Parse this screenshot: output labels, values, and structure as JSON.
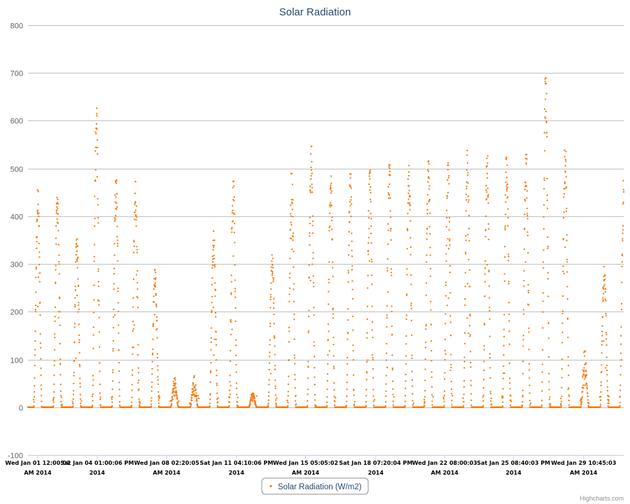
{
  "chart_data": {
    "type": "scatter",
    "title": "Solar Radiation",
    "xlabel": "",
    "ylabel": "",
    "ylim": [
      -100,
      800
    ],
    "y_ticks": [
      800,
      700,
      600,
      500,
      400,
      300,
      200,
      100,
      0,
      -100
    ],
    "grid": true,
    "legend_position": "bottom-center",
    "x_range": [
      "2014-01-01T00:00:00",
      "2014-01-31T12:00:00"
    ],
    "x_tick_labels": [
      {
        "at": "2014-01-01T12:00:02",
        "line1": "Wed Jan 01 12:00:02",
        "line2": "AM 2014"
      },
      {
        "at": "2014-01-04T13:00:06",
        "line1": "Sat Jan 04 01:00:06 PM",
        "line2": "2014"
      },
      {
        "at": "2014-01-08T02:20:05",
        "line1": "Wed Jan 08 02:20:05",
        "line2": "AM 2014"
      },
      {
        "at": "2014-01-11T16:10:06",
        "line1": "Sat Jan 11 04:10:06 PM",
        "line2": "2014"
      },
      {
        "at": "2014-01-15T05:05:02",
        "line1": "Wed Jan 15 05:05:02",
        "line2": "AM 2014"
      },
      {
        "at": "2014-01-18T19:20:04",
        "line1": "Sat Jan 18 07:20:04 PM",
        "line2": "2014"
      },
      {
        "at": "2014-01-22T08:00:03",
        "line1": "Wed Jan 22 08:00:03",
        "line2": "AM 2014"
      },
      {
        "at": "2014-01-25T20:40:03",
        "line1": "Sat Jan 25 08:40:03 PM",
        "line2": "2014"
      },
      {
        "at": "2014-01-29T10:45:03",
        "line1": "Wed Jan 29 10:45:03",
        "line2": "AM 2014"
      }
    ],
    "series": [
      {
        "name": "Solar Radiation (W/m2)",
        "color": "#f57c10",
        "marker": "circle",
        "daily_peaks": [
          {
            "date": "2014-01-01",
            "peak": 455
          },
          {
            "date": "2014-01-02",
            "peak": 452
          },
          {
            "date": "2014-01-03",
            "peak": 355
          },
          {
            "date": "2014-01-04",
            "peak": 628
          },
          {
            "date": "2014-01-05",
            "peak": 478
          },
          {
            "date": "2014-01-06",
            "peak": 476
          },
          {
            "date": "2014-01-07",
            "peak": 295
          },
          {
            "date": "2014-01-08",
            "peak": 68
          },
          {
            "date": "2014-01-09",
            "peak": 70
          },
          {
            "date": "2014-01-10",
            "peak": 372
          },
          {
            "date": "2014-01-11",
            "peak": 478
          },
          {
            "date": "2014-01-12",
            "peak": 35
          },
          {
            "date": "2014-01-13",
            "peak": 325
          },
          {
            "date": "2014-01-14",
            "peak": 492
          },
          {
            "date": "2014-01-15",
            "peak": 550
          },
          {
            "date": "2014-01-16",
            "peak": 492
          },
          {
            "date": "2014-01-17",
            "peak": 493
          },
          {
            "date": "2014-01-18",
            "peak": 497
          },
          {
            "date": "2014-01-19",
            "peak": 508
          },
          {
            "date": "2014-01-20",
            "peak": 512
          },
          {
            "date": "2014-01-21",
            "peak": 516
          },
          {
            "date": "2014-01-22",
            "peak": 512
          },
          {
            "date": "2014-01-23",
            "peak": 540
          },
          {
            "date": "2014-01-24",
            "peak": 527
          },
          {
            "date": "2014-01-25",
            "peak": 524
          },
          {
            "date": "2014-01-26",
            "peak": 530
          },
          {
            "date": "2014-01-27",
            "peak": 692
          },
          {
            "date": "2014-01-28",
            "peak": 550
          },
          {
            "date": "2014-01-29",
            "peak": 125
          },
          {
            "date": "2014-01-30",
            "peak": 300
          },
          {
            "date": "2014-01-31",
            "peak": 475
          }
        ]
      }
    ]
  },
  "credits": "Highcharts.com"
}
